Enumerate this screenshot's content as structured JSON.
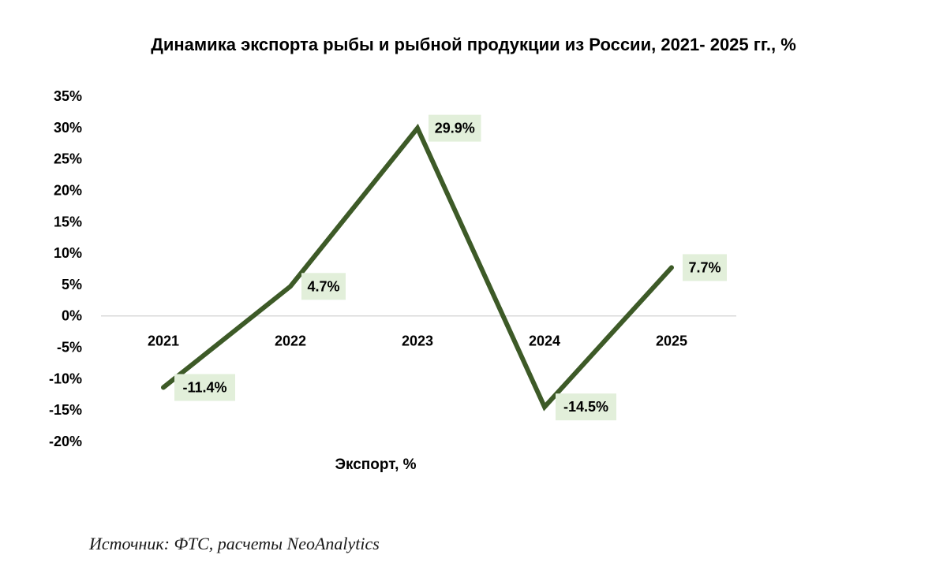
{
  "chart_data": {
    "type": "line",
    "title": "Динамика экспорта рыбы и рыбной продукции из России, 2021- 2025 гг., %",
    "categories": [
      "2021",
      "2022",
      "2023",
      "2024",
      "2025"
    ],
    "series": [
      {
        "name": "Экспорт, %",
        "values": [
          -11.4,
          4.7,
          29.9,
          -14.5,
          7.7
        ]
      }
    ],
    "data_labels": [
      "-11.4%",
      "4.7%",
      "29.9%",
      "-14.5%",
      "7.7%"
    ],
    "y_ticks": [
      35,
      30,
      25,
      20,
      15,
      10,
      5,
      0,
      -5,
      -10,
      -15,
      -20
    ],
    "y_tick_labels": [
      "35%",
      "30%",
      "25%",
      "20%",
      "15%",
      "10%",
      "5%",
      "0%",
      "-5%",
      "-10%",
      "-15%",
      "-20%"
    ],
    "ylim": [
      -20,
      35
    ],
    "grid": false,
    "legend": "bottom",
    "line_color": "#3d5a27",
    "label_bg_color": "#e2efda"
  },
  "source": "Источник: ФТС, расчеты NeoAnalytics"
}
